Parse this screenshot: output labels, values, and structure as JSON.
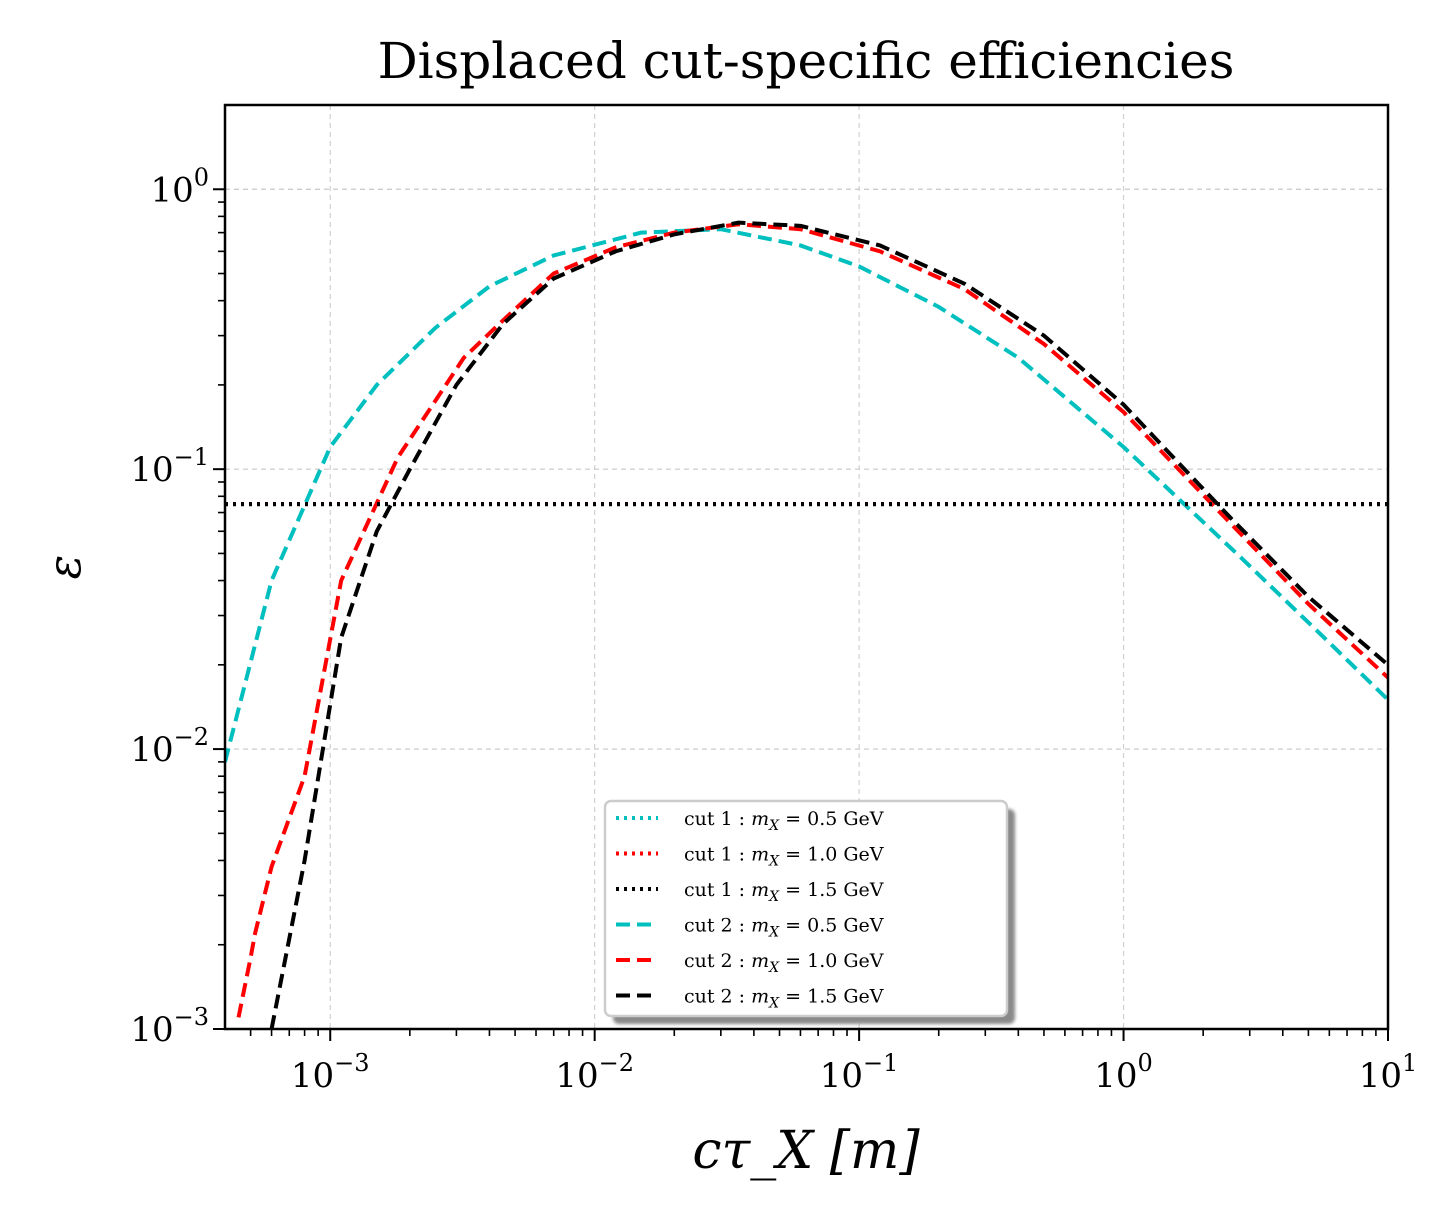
{
  "chart_data": {
    "type": "line",
    "title": "Displaced cut-specific efficiencies",
    "xlabel": "cτ_X [m]",
    "ylabel": "ε",
    "xscale": "log",
    "yscale": "log",
    "xlim": [
      0.0004,
      10
    ],
    "ylim": [
      0.001,
      2
    ],
    "grid": true,
    "x_ticks": [
      {
        "value": 0.001,
        "base": "10",
        "exp": "−3"
      },
      {
        "value": 0.01,
        "base": "10",
        "exp": "−2"
      },
      {
        "value": 0.1,
        "base": "10",
        "exp": "−1"
      },
      {
        "value": 1,
        "base": "10",
        "exp": "0"
      },
      {
        "value": 10,
        "base": "10",
        "exp": "1"
      }
    ],
    "y_ticks": [
      {
        "value": 0.001,
        "base": "10",
        "exp": "−3"
      },
      {
        "value": 0.01,
        "base": "10",
        "exp": "−2"
      },
      {
        "value": 0.1,
        "base": "10",
        "exp": "−1"
      },
      {
        "value": 1,
        "base": "10",
        "exp": "0"
      }
    ],
    "legend_position": "lower-center",
    "series": [
      {
        "name": "cut 1 : m_X = 0.5 GeV",
        "label_prefix": "cut 1 : ",
        "mass_label": "= 0.5 GeV",
        "color": "#00bfbf",
        "style": "dotted",
        "x": [
          0.0004,
          10
        ],
        "y": [
          0.075,
          0.075
        ]
      },
      {
        "name": "cut 1 : m_X = 1.0 GeV",
        "label_prefix": "cut 1 : ",
        "mass_label": "= 1.0 GeV",
        "color": "#ff0000",
        "style": "dotted",
        "x": [
          0.0004,
          10
        ],
        "y": [
          0.075,
          0.075
        ]
      },
      {
        "name": "cut 1 : m_X = 1.5 GeV",
        "label_prefix": "cut 1 : ",
        "mass_label": "= 1.5 GeV",
        "color": "#000000",
        "style": "dotted",
        "x": [
          0.0004,
          10
        ],
        "y": [
          0.075,
          0.075
        ]
      },
      {
        "name": "cut 2 : m_X = 0.5 GeV",
        "label_prefix": "cut 2 : ",
        "mass_label": "= 0.5 GeV",
        "color": "#00bfbf",
        "style": "dashed",
        "x": [
          0.0004,
          0.0006,
          0.001,
          0.0015,
          0.0025,
          0.004,
          0.007,
          0.015,
          0.03,
          0.06,
          0.1,
          0.2,
          0.4,
          1,
          2.8,
          6,
          10
        ],
        "y": [
          0.009,
          0.04,
          0.12,
          0.2,
          0.32,
          0.45,
          0.58,
          0.7,
          0.72,
          0.63,
          0.53,
          0.38,
          0.25,
          0.12,
          0.048,
          0.024,
          0.015
        ]
      },
      {
        "name": "cut 2 : m_X = 1.0 GeV",
        "label_prefix": "cut 2 : ",
        "mass_label": "= 1.0 GeV",
        "color": "#ff0000",
        "style": "dashed",
        "x": [
          0.00045,
          0.0005,
          0.00052,
          0.0006,
          0.0008,
          0.0011,
          0.0018,
          0.0032,
          0.0045,
          0.007,
          0.012,
          0.02,
          0.035,
          0.06,
          0.12,
          0.25,
          0.5,
          1,
          2.5,
          5,
          10
        ],
        "y": [
          0.0011,
          0.0018,
          0.0022,
          0.0038,
          0.008,
          0.04,
          0.11,
          0.25,
          0.34,
          0.5,
          0.62,
          0.7,
          0.75,
          0.72,
          0.6,
          0.44,
          0.28,
          0.16,
          0.065,
          0.033,
          0.018
        ]
      },
      {
        "name": "cut 2 : m_X = 1.5 GeV",
        "label_prefix": "cut 2 : ",
        "mass_label": "= 1.5 GeV",
        "color": "#000000",
        "style": "dashed",
        "x": [
          0.0006,
          0.0008,
          0.0011,
          0.0015,
          0.002,
          0.003,
          0.0045,
          0.007,
          0.012,
          0.02,
          0.035,
          0.06,
          0.12,
          0.25,
          0.5,
          1,
          2.5,
          5,
          10
        ],
        "y": [
          0.001,
          0.004,
          0.025,
          0.06,
          0.1,
          0.2,
          0.33,
          0.48,
          0.6,
          0.69,
          0.76,
          0.74,
          0.63,
          0.46,
          0.3,
          0.17,
          0.068,
          0.035,
          0.02
        ]
      }
    ]
  }
}
